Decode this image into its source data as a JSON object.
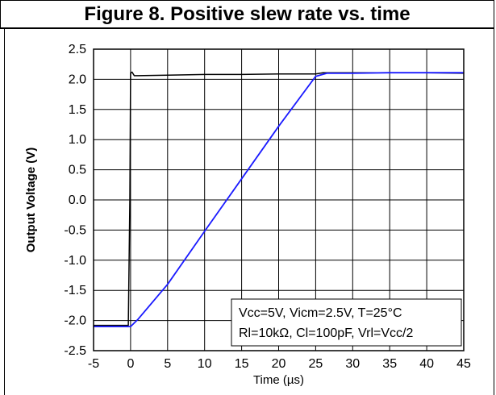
{
  "chart_data": {
    "type": "line",
    "title": "Figure 8. Positive slew rate vs. time",
    "xlabel": "Time (µs)",
    "ylabel": "Output Voltage (V)",
    "xlim": [
      -5,
      45
    ],
    "ylim": [
      -2.5,
      2.5
    ],
    "x_ticks": [
      "-5",
      "0",
      "5",
      "10",
      "15",
      "20",
      "25",
      "30",
      "35",
      "40",
      "45"
    ],
    "y_ticks": [
      "2.5",
      "2.0",
      "1.5",
      "1.0",
      "0.5",
      "0.0",
      "-0.5",
      "-1.0",
      "-1.5",
      "-2.0",
      "-2.5"
    ],
    "grid": true,
    "annotation": [
      "Vcc=5V, Vicm=2.5V, T=25°C",
      "Rl=10kΩ, Cl=100pF, Vrl=Vcc/2"
    ],
    "series": [
      {
        "color": "#000000",
        "x": [
          -5,
          -2,
          -0.3,
          -0.1,
          0,
          0.2,
          0.5,
          1,
          5,
          10,
          15,
          20,
          25,
          26,
          30,
          35,
          40,
          45
        ],
        "y": [
          -2.08,
          -2.08,
          -2.08,
          0.0,
          2.1,
          2.12,
          2.06,
          2.06,
          2.07,
          2.08,
          2.08,
          2.09,
          2.09,
          2.11,
          2.11,
          2.11,
          2.11,
          2.1
        ]
      },
      {
        "color": "#1a1aff",
        "x": [
          -5,
          -2,
          0,
          1,
          5,
          10,
          15,
          20,
          25,
          26.5,
          27,
          30,
          35,
          40,
          45
        ],
        "y": [
          -2.1,
          -2.1,
          -2.1,
          -1.98,
          -1.4,
          -0.52,
          0.35,
          1.22,
          2.05,
          2.1,
          2.1,
          2.1,
          2.11,
          2.11,
          2.11
        ]
      }
    ]
  }
}
